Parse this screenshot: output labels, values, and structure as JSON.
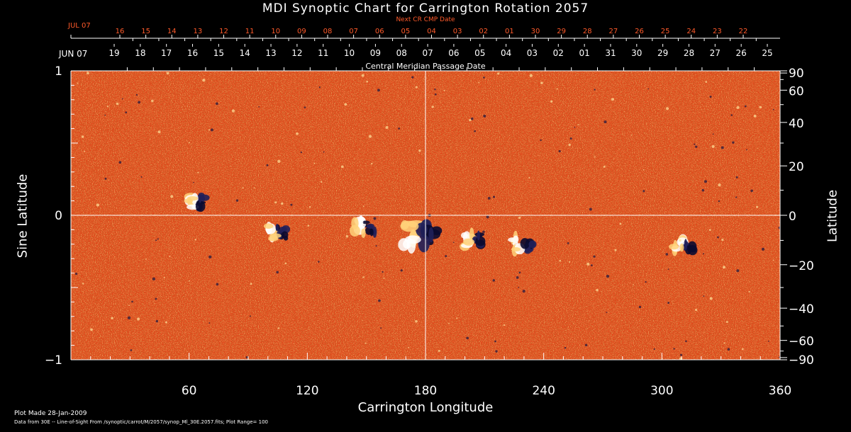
{
  "title": "MDI Synoptic Chart for Carrington Rotation 2057",
  "next_cr_label": "Next CR CMP Date",
  "cmp_label": "Central Meridian Passage Date",
  "colors": {
    "background": "#000000",
    "map_base": "#e6451a",
    "text": "#ffffff",
    "next_cr_text": "#ff5a2a"
  },
  "top_ticks": {
    "next_cr_month": "JUL 07",
    "next_cr_days": [
      "16",
      "15",
      "14",
      "13",
      "12",
      "11",
      "10",
      "09",
      "08",
      "07",
      "06",
      "05",
      "04",
      "03",
      "02",
      "01",
      "30",
      "29",
      "28",
      "27",
      "26",
      "25",
      "24",
      "23",
      "22"
    ],
    "cmp_month": "JUN 07",
    "cmp_days": [
      "19",
      "18",
      "17",
      "16",
      "15",
      "14",
      "13",
      "12",
      "11",
      "10",
      "09",
      "08",
      "07",
      "06",
      "05",
      "04",
      "03",
      "02",
      "01",
      "31",
      "30",
      "29",
      "28",
      "27",
      "26",
      "25"
    ]
  },
  "footer": {
    "plot_made": "Plot Made 28-Jan-2009",
    "data_from": "Data from 30E -- Line-of-Sight From /synoptic/carrot/M/2057/synop_Ml_30E.2057.fits; Plot Range=  100"
  },
  "chart_data": {
    "type": "heatmap",
    "title": "MDI Synoptic Chart for Carrington Rotation 2057",
    "xlabel": "Carrington Longitude",
    "ylabel_left": "Sine Latitude",
    "ylabel_right": "Latitude",
    "xlim": [
      0,
      360
    ],
    "ylim": [
      -1,
      1
    ],
    "x_ticks": [
      "60",
      "120",
      "180",
      "240",
      "300",
      "360"
    ],
    "x_tick_values": [
      60,
      120,
      180,
      240,
      300,
      360
    ],
    "y_ticks_left": [
      "1",
      "0",
      "−1"
    ],
    "y_tick_values_left": [
      1,
      0,
      -1
    ],
    "y_ticks_right": [
      "90",
      "60",
      "40",
      "20",
      "0",
      "−20",
      "−40",
      "−60",
      "−90"
    ],
    "y_tick_values_right": [
      90,
      60,
      40,
      20,
      0,
      -20,
      -40,
      -60,
      -90
    ],
    "plot_range": 100,
    "crosshair": {
      "longitude": 180,
      "sine_latitude": 0
    },
    "features": [
      {
        "lon": 65,
        "sinlat": 0.1,
        "type": "bipole"
      },
      {
        "lon": 105,
        "sinlat": -0.12,
        "type": "bipole"
      },
      {
        "lon": 150,
        "sinlat": -0.08,
        "type": "bipole"
      },
      {
        "lon": 178,
        "sinlat": -0.14,
        "type": "bipole"
      },
      {
        "lon": 205,
        "sinlat": -0.17,
        "type": "bipole"
      },
      {
        "lon": 230,
        "sinlat": -0.2,
        "type": "bipole"
      },
      {
        "lon": 312,
        "sinlat": -0.2,
        "type": "bipole"
      }
    ]
  }
}
